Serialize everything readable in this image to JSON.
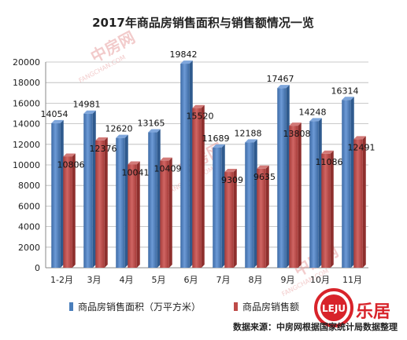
{
  "chart_data": {
    "type": "bar",
    "title": "2017年商品房销售面积与销售额情况一览",
    "categories": [
      "1-2月",
      "3月",
      "4月",
      "5月",
      "6月",
      "7月",
      "8月",
      "9月",
      "10月",
      "11月"
    ],
    "series": [
      {
        "name": "商品房销售面积（万平方米）",
        "color": "#4a7ebb",
        "values": [
          14054,
          14981,
          12620,
          13165,
          19842,
          11689,
          12188,
          17467,
          14248,
          16314
        ]
      },
      {
        "name": "商品房销售额",
        "color": "#be4b48",
        "values": [
          10806,
          12376,
          10041,
          10409,
          15520,
          9309,
          9635,
          13808,
          11086,
          12491
        ]
      }
    ],
    "ylim": [
      0,
      20000
    ],
    "yticks": [
      0,
      2000,
      4000,
      6000,
      8000,
      10000,
      12000,
      14000,
      16000,
      18000,
      20000
    ],
    "grid": true,
    "legend_position": "bottom",
    "source_note": "数据来源：中房网根据国家统计局数据整理",
    "watermark": {
      "text": "中房网",
      "subtext": "FANGCHAN.COM",
      "color": "#e8a0a0"
    },
    "logo": {
      "mark": "LEJU",
      "text": "乐居",
      "color": "#d8232a"
    }
  }
}
